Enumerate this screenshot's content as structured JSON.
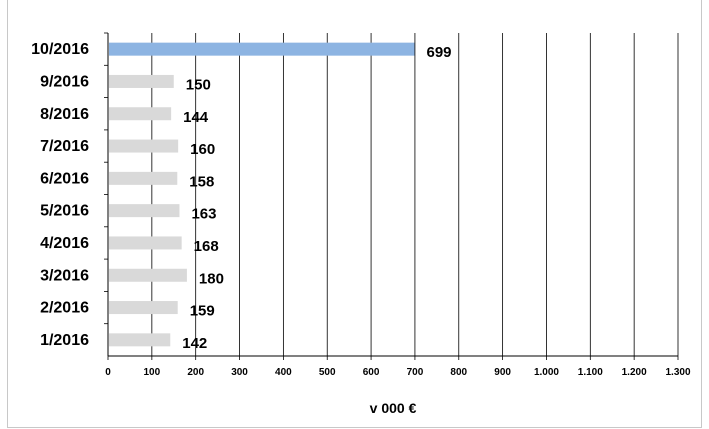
{
  "chart_data": {
    "type": "bar",
    "orientation": "horizontal",
    "categories": [
      "1/2016",
      "2/2016",
      "3/2016",
      "4/2016",
      "5/2016",
      "6/2016",
      "7/2016",
      "8/2016",
      "9/2016",
      "10/2016"
    ],
    "values": [
      142,
      159,
      180,
      168,
      163,
      158,
      160,
      144,
      150,
      699
    ],
    "xlabel": "v 000 €",
    "ylabel": "",
    "xlim": [
      0,
      1300
    ],
    "x_ticks": [
      "0",
      "100",
      "200",
      "300",
      "400",
      "500",
      "600",
      "700",
      "800",
      "900",
      "1.000",
      "1.100",
      "1.200",
      "1.300"
    ],
    "grid": "vertical",
    "legend": "none",
    "colors": {
      "default_bar": "#d9d9d9",
      "highlight_bar": "#8db4e2",
      "highlight_index": 9,
      "grid": "#000000"
    }
  }
}
